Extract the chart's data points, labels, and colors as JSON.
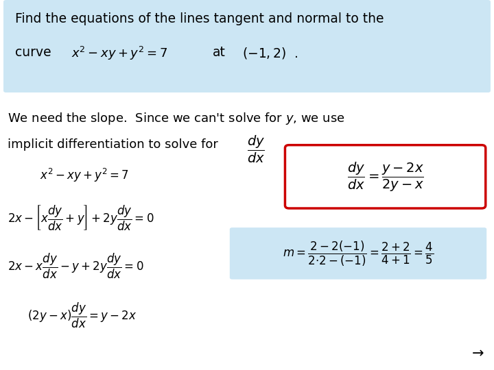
{
  "bg_color": "#ffffff",
  "header_bg": "#cce6f4",
  "body_text1": "We need the slope.  Since we can't solve for $y$, we use",
  "body_text2_pre": "implicit differentiation to solve for",
  "body_text2_eq": "$\\dfrac{dy}{dx}$",
  "body_text2_post": ".",
  "eq1": "$x^2 - xy + y^2 = 7$",
  "eq2": "$2x - \\left[x\\dfrac{dy}{dx} + y\\right] + 2y\\dfrac{dy}{dx} = 0$",
  "eq3": "$2x - x\\dfrac{dy}{dx} - y + 2y\\dfrac{dy}{dx} = 0$",
  "eq4": "$(2y - x)\\dfrac{dy}{dx} = y - 2x$",
  "box_red_eq": "$\\dfrac{dy}{dx} = \\dfrac{y-2x}{2y-x}$",
  "box_blue_eq": "$m = \\dfrac{2-2(-1)}{2 {\\cdot} 2-(-1)} = \\dfrac{2+2}{4+1} = \\dfrac{4}{5}$",
  "arrow": "→",
  "red_box_color": "#cc0000",
  "blue_box_color": "#cce6f4"
}
